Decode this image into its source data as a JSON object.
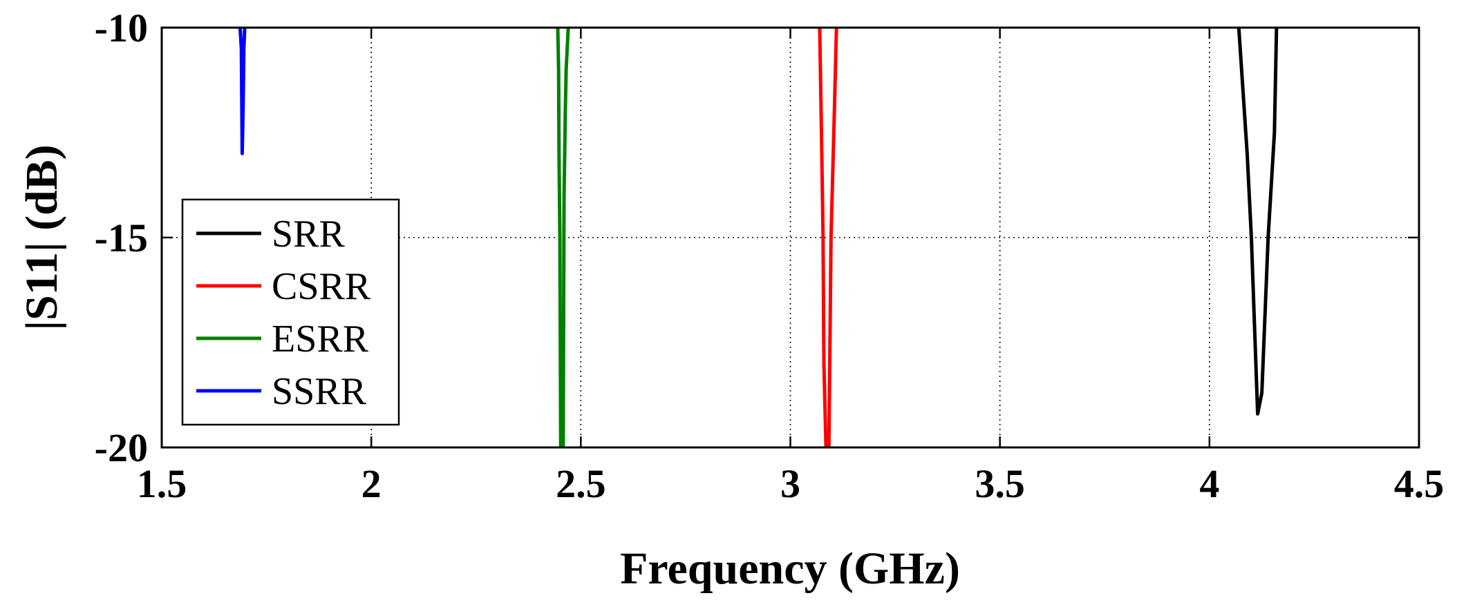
{
  "chart_data": {
    "type": "line",
    "title": "",
    "xlabel": "Frequency (GHz)",
    "ylabel": "|S11| (dB)",
    "xlim": [
      1.5,
      4.5
    ],
    "ylim": [
      -20,
      -10
    ],
    "xticks": [
      "1.5",
      "2",
      "2.5",
      "3",
      "3.5",
      "4",
      "4.5"
    ],
    "xtick_values": [
      1.5,
      2,
      2.5,
      3,
      3.5,
      4,
      4.5
    ],
    "yticks": [
      "-10",
      "-15",
      "-20"
    ],
    "ytick_values": [
      -10,
      -15,
      -20
    ],
    "grid": true,
    "legend_position": "left",
    "series": [
      {
        "name": "SRR",
        "color": "#000000",
        "points": [
          [
            4.07,
            -10
          ],
          [
            4.09,
            -13
          ],
          [
            4.1,
            -15
          ],
          [
            4.115,
            -19.2
          ],
          [
            4.125,
            -18.7
          ],
          [
            4.14,
            -15
          ],
          [
            4.155,
            -12.5
          ],
          [
            4.16,
            -10
          ]
        ]
      },
      {
        "name": "CSRR",
        "color": "#ff0000",
        "points": [
          [
            3.07,
            -10
          ],
          [
            3.075,
            -13
          ],
          [
            3.078,
            -15
          ],
          [
            3.08,
            -18
          ],
          [
            3.085,
            -20
          ],
          [
            3.092,
            -20
          ],
          [
            3.095,
            -17
          ],
          [
            3.097,
            -15
          ],
          [
            3.105,
            -12
          ],
          [
            3.11,
            -10
          ]
        ]
      },
      {
        "name": "ESRR",
        "color": "#008000",
        "points": [
          [
            2.445,
            -10
          ],
          [
            2.447,
            -11
          ],
          [
            2.448,
            -13
          ],
          [
            2.45,
            -15
          ],
          [
            2.452,
            -20
          ],
          [
            2.458,
            -20
          ],
          [
            2.46,
            -14
          ],
          [
            2.463,
            -12
          ],
          [
            2.465,
            -11
          ],
          [
            2.47,
            -10
          ]
        ]
      },
      {
        "name": "SSRR",
        "color": "#0000ff",
        "points": [
          [
            1.687,
            -10
          ],
          [
            1.69,
            -10.5
          ],
          [
            1.692,
            -13
          ],
          [
            1.694,
            -12
          ],
          [
            1.696,
            -10.5
          ],
          [
            1.698,
            -10
          ]
        ]
      }
    ]
  }
}
